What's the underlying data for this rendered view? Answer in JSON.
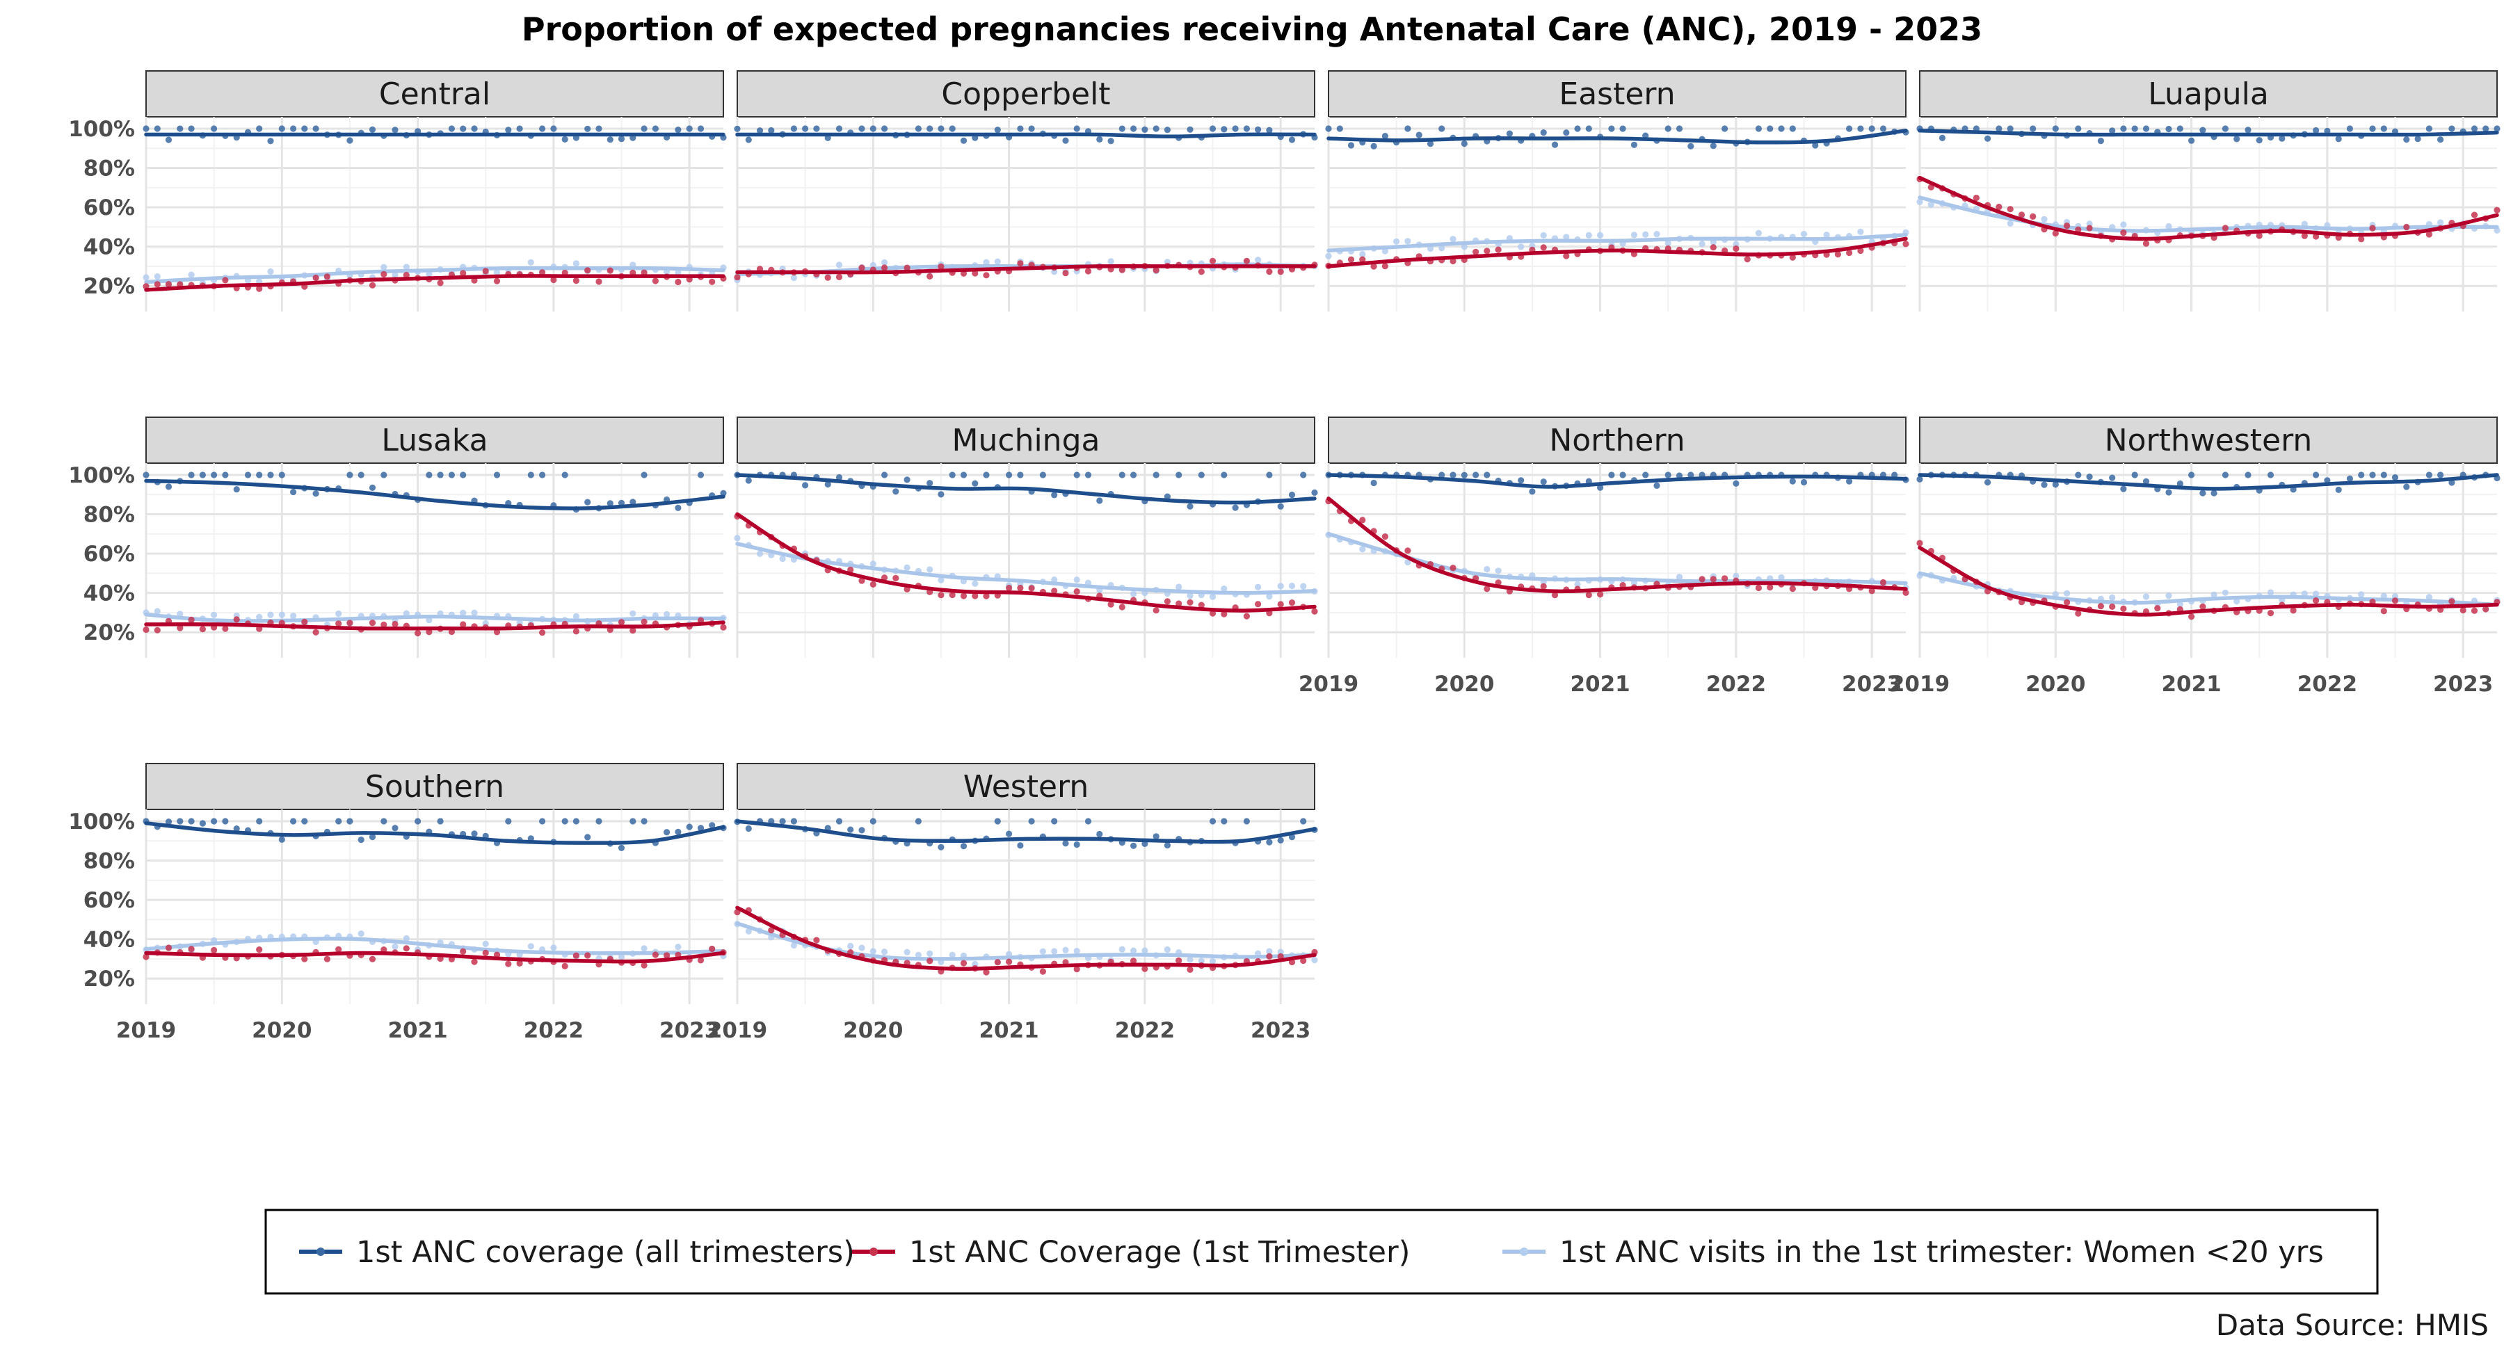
{
  "chart_data": {
    "type": "scatter",
    "title": "Proportion of expected pregnancies receiving Antenatal Care (ANC), 2019 - 2023",
    "xlabel": "",
    "ylabel": "",
    "x_ticks": [
      "2019",
      "2020",
      "2021",
      "2022",
      "2023"
    ],
    "y_ticks": [
      "20%",
      "40%",
      "60%",
      "80%",
      "100%"
    ],
    "x_range": [
      2019.0,
      2023.25
    ],
    "y_range": [
      0.07,
      1.06
    ],
    "grid": true,
    "legend_position": "bottom",
    "series_styles": [
      {
        "name": "1st ANC coverage (all trimesters)",
        "color": "#1f4e8c",
        "point_color": "#3a6aa3"
      },
      {
        "name": "1st ANC Coverage (1st Trimester)",
        "color": "#b5002b",
        "point_color": "#c7324f"
      },
      {
        "name": "1st ANC visits in the 1st trimester: Women <20 yrs",
        "color": "#a9c6ea",
        "point_color": "#b3cdee"
      }
    ],
    "facets": [
      {
        "name": "Central",
        "trends": [
          [
            0.97,
            0.97,
            0.97,
            0.97,
            0.97,
            0.97,
            0.97,
            0.97,
            0.97
          ],
          [
            0.18,
            0.2,
            0.21,
            0.23,
            0.24,
            0.25,
            0.25,
            0.25,
            0.25
          ],
          [
            0.22,
            0.24,
            0.25,
            0.27,
            0.28,
            0.29,
            0.29,
            0.29,
            0.28
          ]
        ]
      },
      {
        "name": "Copperbelt",
        "trends": [
          [
            0.97,
            0.97,
            0.97,
            0.97,
            0.97,
            0.97,
            0.96,
            0.97,
            0.97
          ],
          [
            0.27,
            0.27,
            0.27,
            0.28,
            0.29,
            0.3,
            0.3,
            0.3,
            0.3
          ],
          [
            0.26,
            0.27,
            0.29,
            0.3,
            0.3,
            0.3,
            0.3,
            0.31,
            0.3
          ]
        ]
      },
      {
        "name": "Eastern",
        "trends": [
          [
            0.95,
            0.94,
            0.95,
            0.95,
            0.95,
            0.94,
            0.93,
            0.94,
            0.99
          ],
          [
            0.3,
            0.33,
            0.35,
            0.37,
            0.38,
            0.37,
            0.36,
            0.38,
            0.44
          ],
          [
            0.38,
            0.4,
            0.42,
            0.43,
            0.43,
            0.44,
            0.44,
            0.44,
            0.46
          ]
        ]
      },
      {
        "name": "Luapula",
        "trends": [
          [
            0.99,
            0.98,
            0.97,
            0.97,
            0.97,
            0.97,
            0.97,
            0.97,
            0.98
          ],
          [
            0.75,
            0.59,
            0.48,
            0.44,
            0.46,
            0.48,
            0.46,
            0.48,
            0.56
          ],
          [
            0.65,
            0.56,
            0.5,
            0.48,
            0.49,
            0.5,
            0.49,
            0.5,
            0.5
          ]
        ]
      },
      {
        "name": "Lusaka",
        "trends": [
          [
            0.97,
            0.96,
            0.94,
            0.91,
            0.87,
            0.84,
            0.83,
            0.85,
            0.89
          ],
          [
            0.24,
            0.24,
            0.23,
            0.22,
            0.22,
            0.22,
            0.23,
            0.23,
            0.25
          ],
          [
            0.29,
            0.26,
            0.26,
            0.27,
            0.28,
            0.27,
            0.26,
            0.27,
            0.27
          ]
        ]
      },
      {
        "name": "Muchinga",
        "trends": [
          [
            1.0,
            0.98,
            0.95,
            0.93,
            0.93,
            0.9,
            0.87,
            0.86,
            0.88
          ],
          [
            0.8,
            0.57,
            0.46,
            0.41,
            0.4,
            0.37,
            0.33,
            0.31,
            0.33
          ],
          [
            0.65,
            0.57,
            0.52,
            0.48,
            0.46,
            0.43,
            0.41,
            0.4,
            0.41
          ]
        ]
      },
      {
        "name": "Northern",
        "trends": [
          [
            1.0,
            0.99,
            0.97,
            0.94,
            0.96,
            0.98,
            0.99,
            0.99,
            0.98
          ],
          [
            0.88,
            0.6,
            0.46,
            0.41,
            0.42,
            0.44,
            0.45,
            0.44,
            0.42
          ],
          [
            0.7,
            0.59,
            0.5,
            0.47,
            0.47,
            0.46,
            0.46,
            0.46,
            0.45
          ]
        ]
      },
      {
        "name": "Northwestern",
        "trends": [
          [
            1.0,
            0.99,
            0.97,
            0.95,
            0.93,
            0.94,
            0.96,
            0.97,
            1.0
          ],
          [
            0.63,
            0.42,
            0.33,
            0.29,
            0.31,
            0.33,
            0.34,
            0.33,
            0.34
          ],
          [
            0.5,
            0.42,
            0.37,
            0.35,
            0.37,
            0.38,
            0.37,
            0.36,
            0.34
          ]
        ]
      },
      {
        "name": "Southern",
        "trends": [
          [
            0.99,
            0.95,
            0.93,
            0.94,
            0.93,
            0.9,
            0.89,
            0.9,
            0.97
          ],
          [
            0.33,
            0.32,
            0.32,
            0.33,
            0.32,
            0.3,
            0.29,
            0.29,
            0.33
          ],
          [
            0.35,
            0.38,
            0.4,
            0.4,
            0.37,
            0.34,
            0.33,
            0.33,
            0.34
          ]
        ]
      },
      {
        "name": "Western",
        "trends": [
          [
            1.0,
            0.96,
            0.91,
            0.9,
            0.91,
            0.91,
            0.9,
            0.9,
            0.96
          ],
          [
            0.56,
            0.38,
            0.28,
            0.25,
            0.26,
            0.27,
            0.27,
            0.27,
            0.32
          ],
          [
            0.48,
            0.37,
            0.31,
            0.3,
            0.31,
            0.32,
            0.32,
            0.31,
            0.32
          ]
        ]
      }
    ],
    "source": "Data Source: HMIS"
  }
}
